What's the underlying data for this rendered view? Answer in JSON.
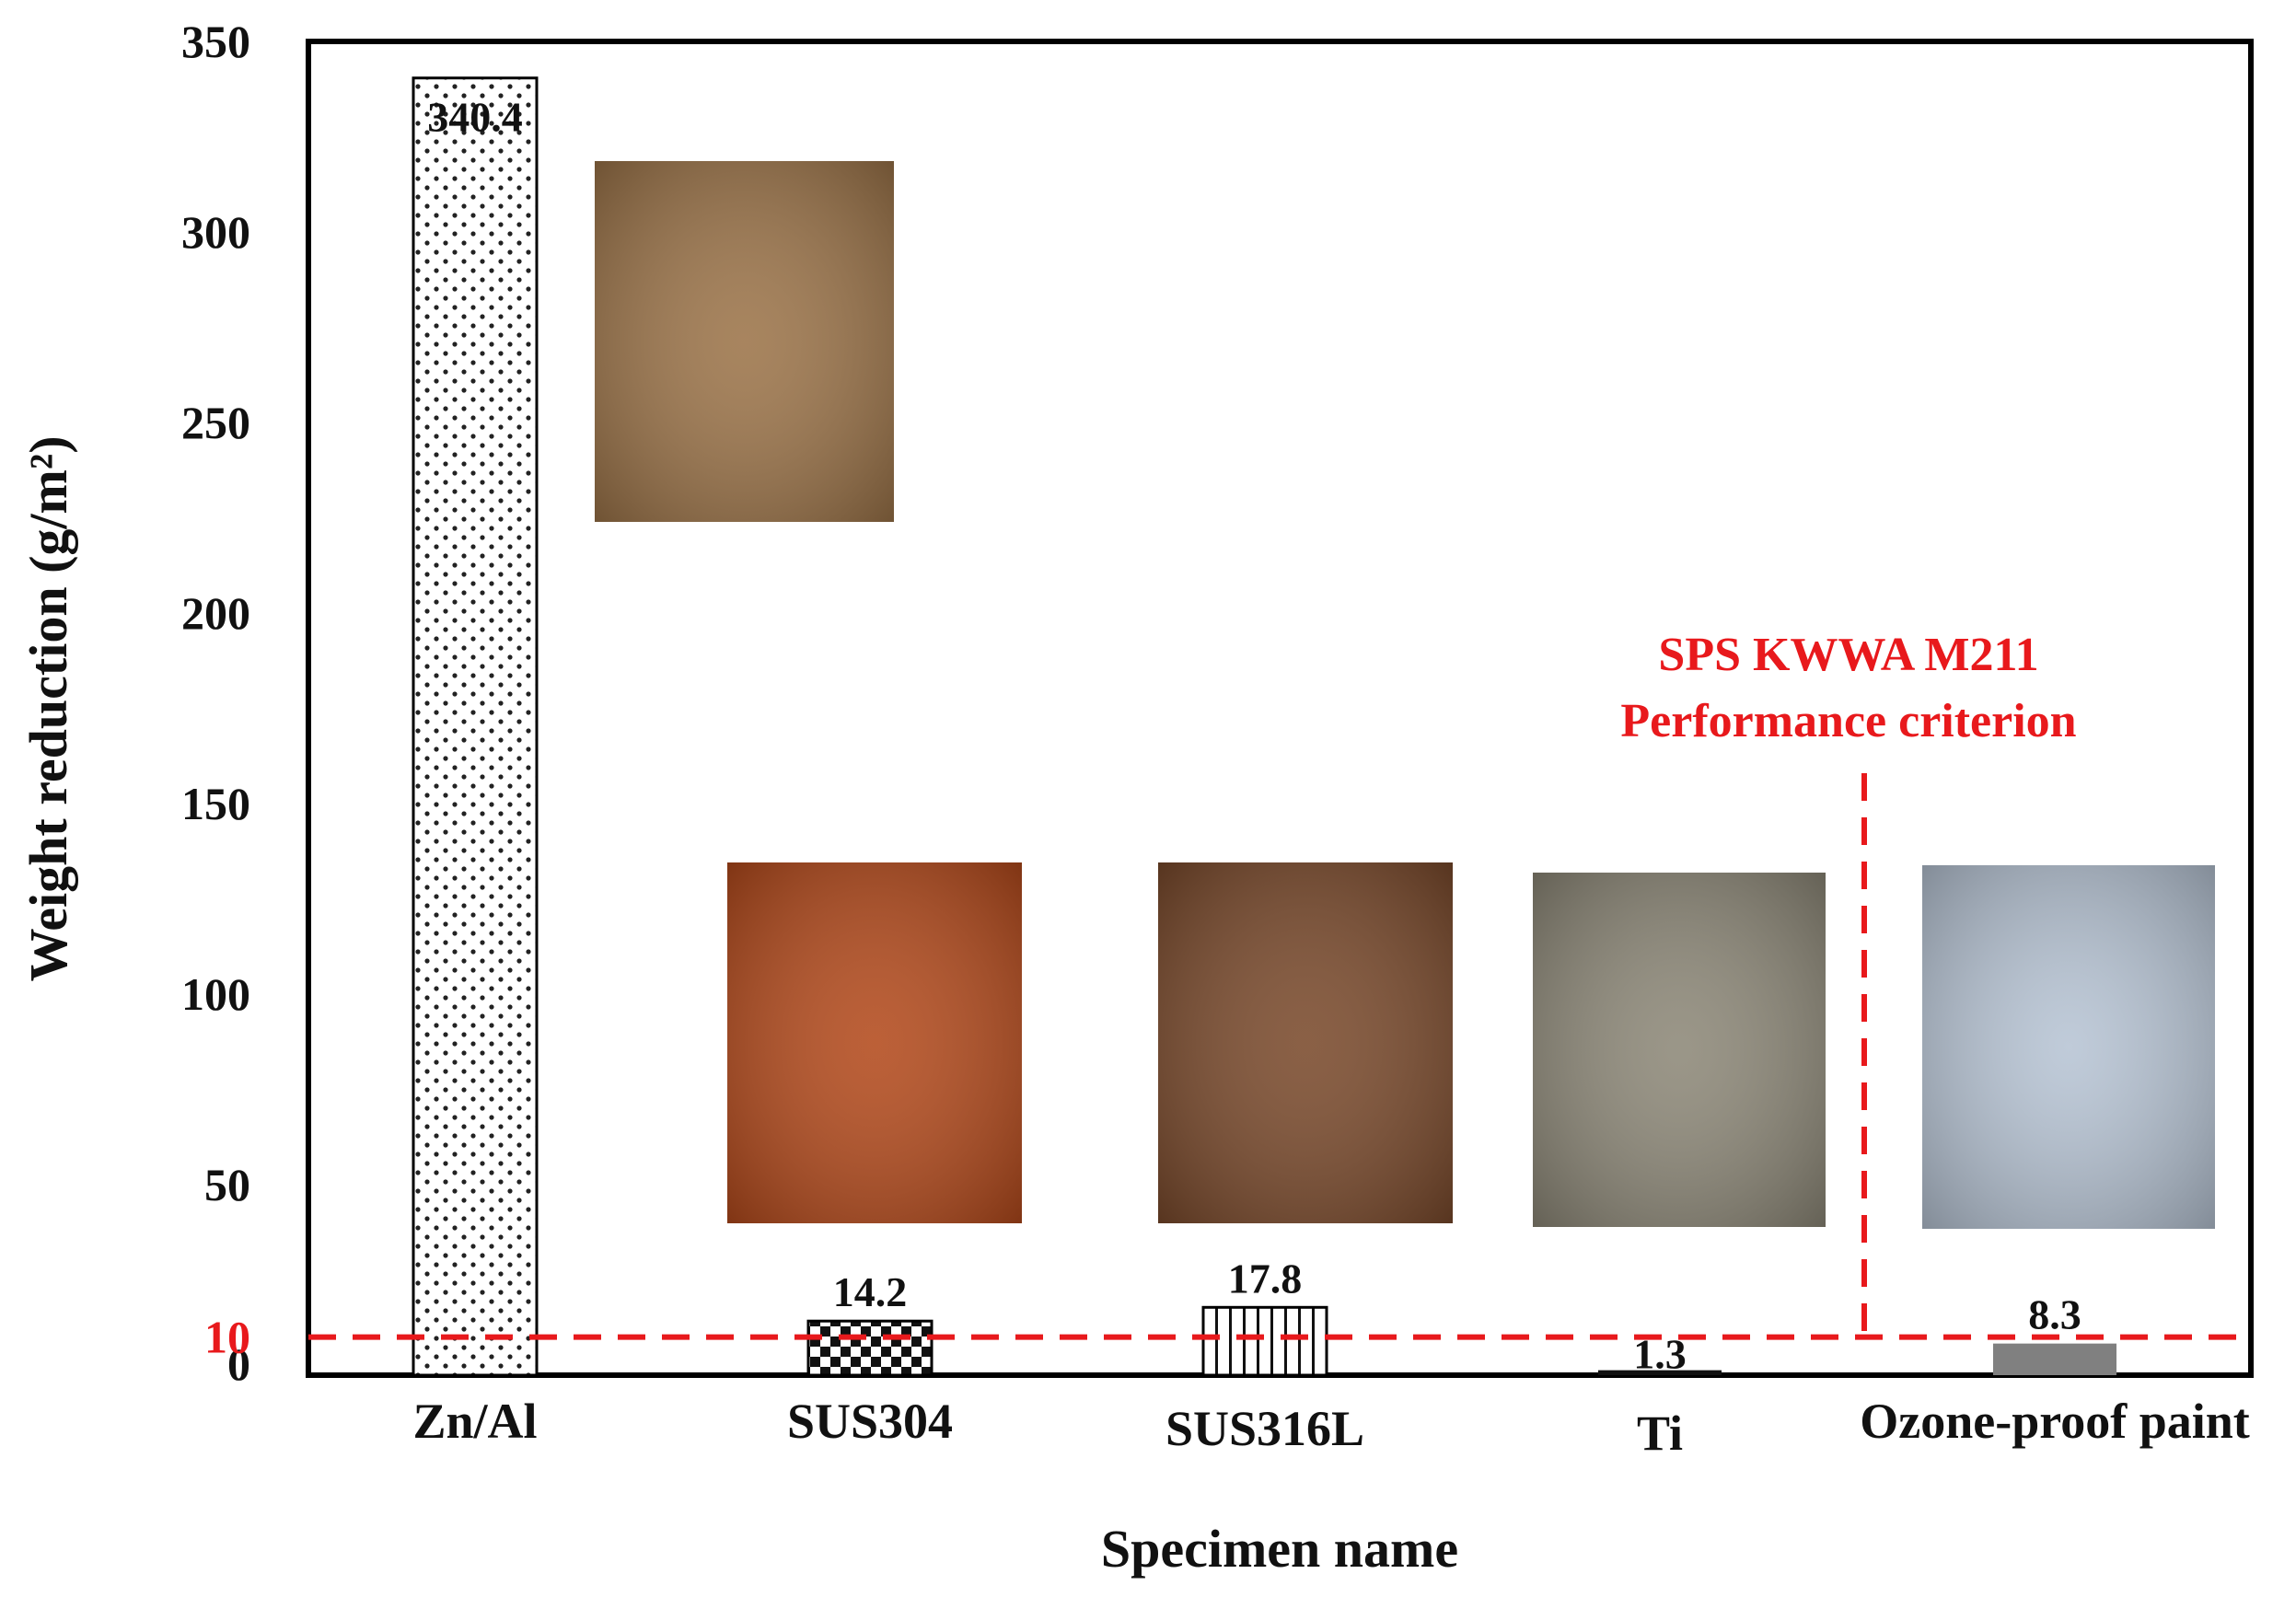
{
  "chart_data": {
    "type": "bar",
    "title": "",
    "xlabel": "Specimen name",
    "ylabel": "Weight reduction (g/m²)",
    "ylim": [
      0,
      350
    ],
    "yticks": [
      0,
      10,
      50,
      100,
      150,
      200,
      250,
      300,
      350
    ],
    "categories": [
      "Zn/Al",
      "SUS304",
      "SUS316L",
      "Ti",
      "Ozone-proof paint"
    ],
    "values": [
      340.4,
      14.2,
      17.8,
      1.3,
      8.3
    ],
    "data_labels": [
      "340.4",
      "14.2",
      "17.8",
      "1.3",
      "8.3"
    ],
    "bar_patterns": [
      "dots",
      "checker",
      "vertical-stripes",
      "solid-black",
      "solid-gray"
    ],
    "grid": false,
    "legend": "none",
    "criterion": {
      "value": 10,
      "tick_label": "10",
      "line1": "SPS KWWA M211",
      "line2": "Performance criterion",
      "color": "#e8191c"
    },
    "specimen_photos": [
      {
        "category": "Zn/Al",
        "color": "#9c7449"
      },
      {
        "category": "SUS304",
        "color": "#b34a1c"
      },
      {
        "category": "SUS316L",
        "color": "#7a4a2c"
      },
      {
        "category": "Ti",
        "color": "#8d8878"
      },
      {
        "category": "Ozone-proof paint",
        "color": "#b7c4d4"
      }
    ]
  }
}
